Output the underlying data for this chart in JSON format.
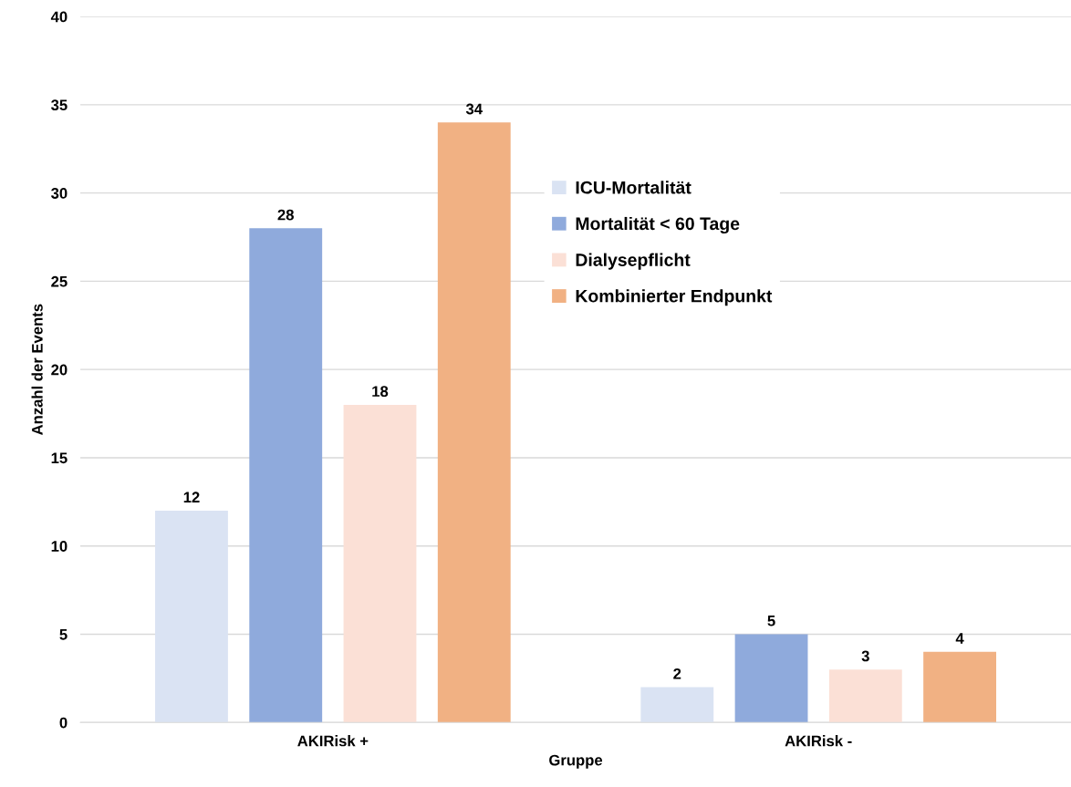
{
  "chart_data": {
    "type": "bar",
    "xlabel": "Gruppe",
    "ylabel": "Anzahl der Events",
    "categories": [
      "AKIRisk +",
      "AKIRisk -"
    ],
    "series": [
      {
        "name": "ICU-Mortalität",
        "color": "#dae3f3",
        "values": [
          12,
          2
        ]
      },
      {
        "name": "Mortalität < 60 Tage",
        "color": "#8faadc",
        "values": [
          28,
          5
        ]
      },
      {
        "name": "Dialysepflicht",
        "color": "#fbe0d6",
        "values": [
          18,
          3
        ]
      },
      {
        "name": "Kombinierter Endpunkt",
        "color": "#f1b183",
        "values": [
          34,
          4
        ]
      }
    ],
    "ylim": [
      0,
      40
    ],
    "yticks": [
      0,
      5,
      10,
      15,
      20,
      25,
      30,
      35,
      40
    ],
    "grid": "y",
    "legend": "top",
    "data_labels": true
  }
}
